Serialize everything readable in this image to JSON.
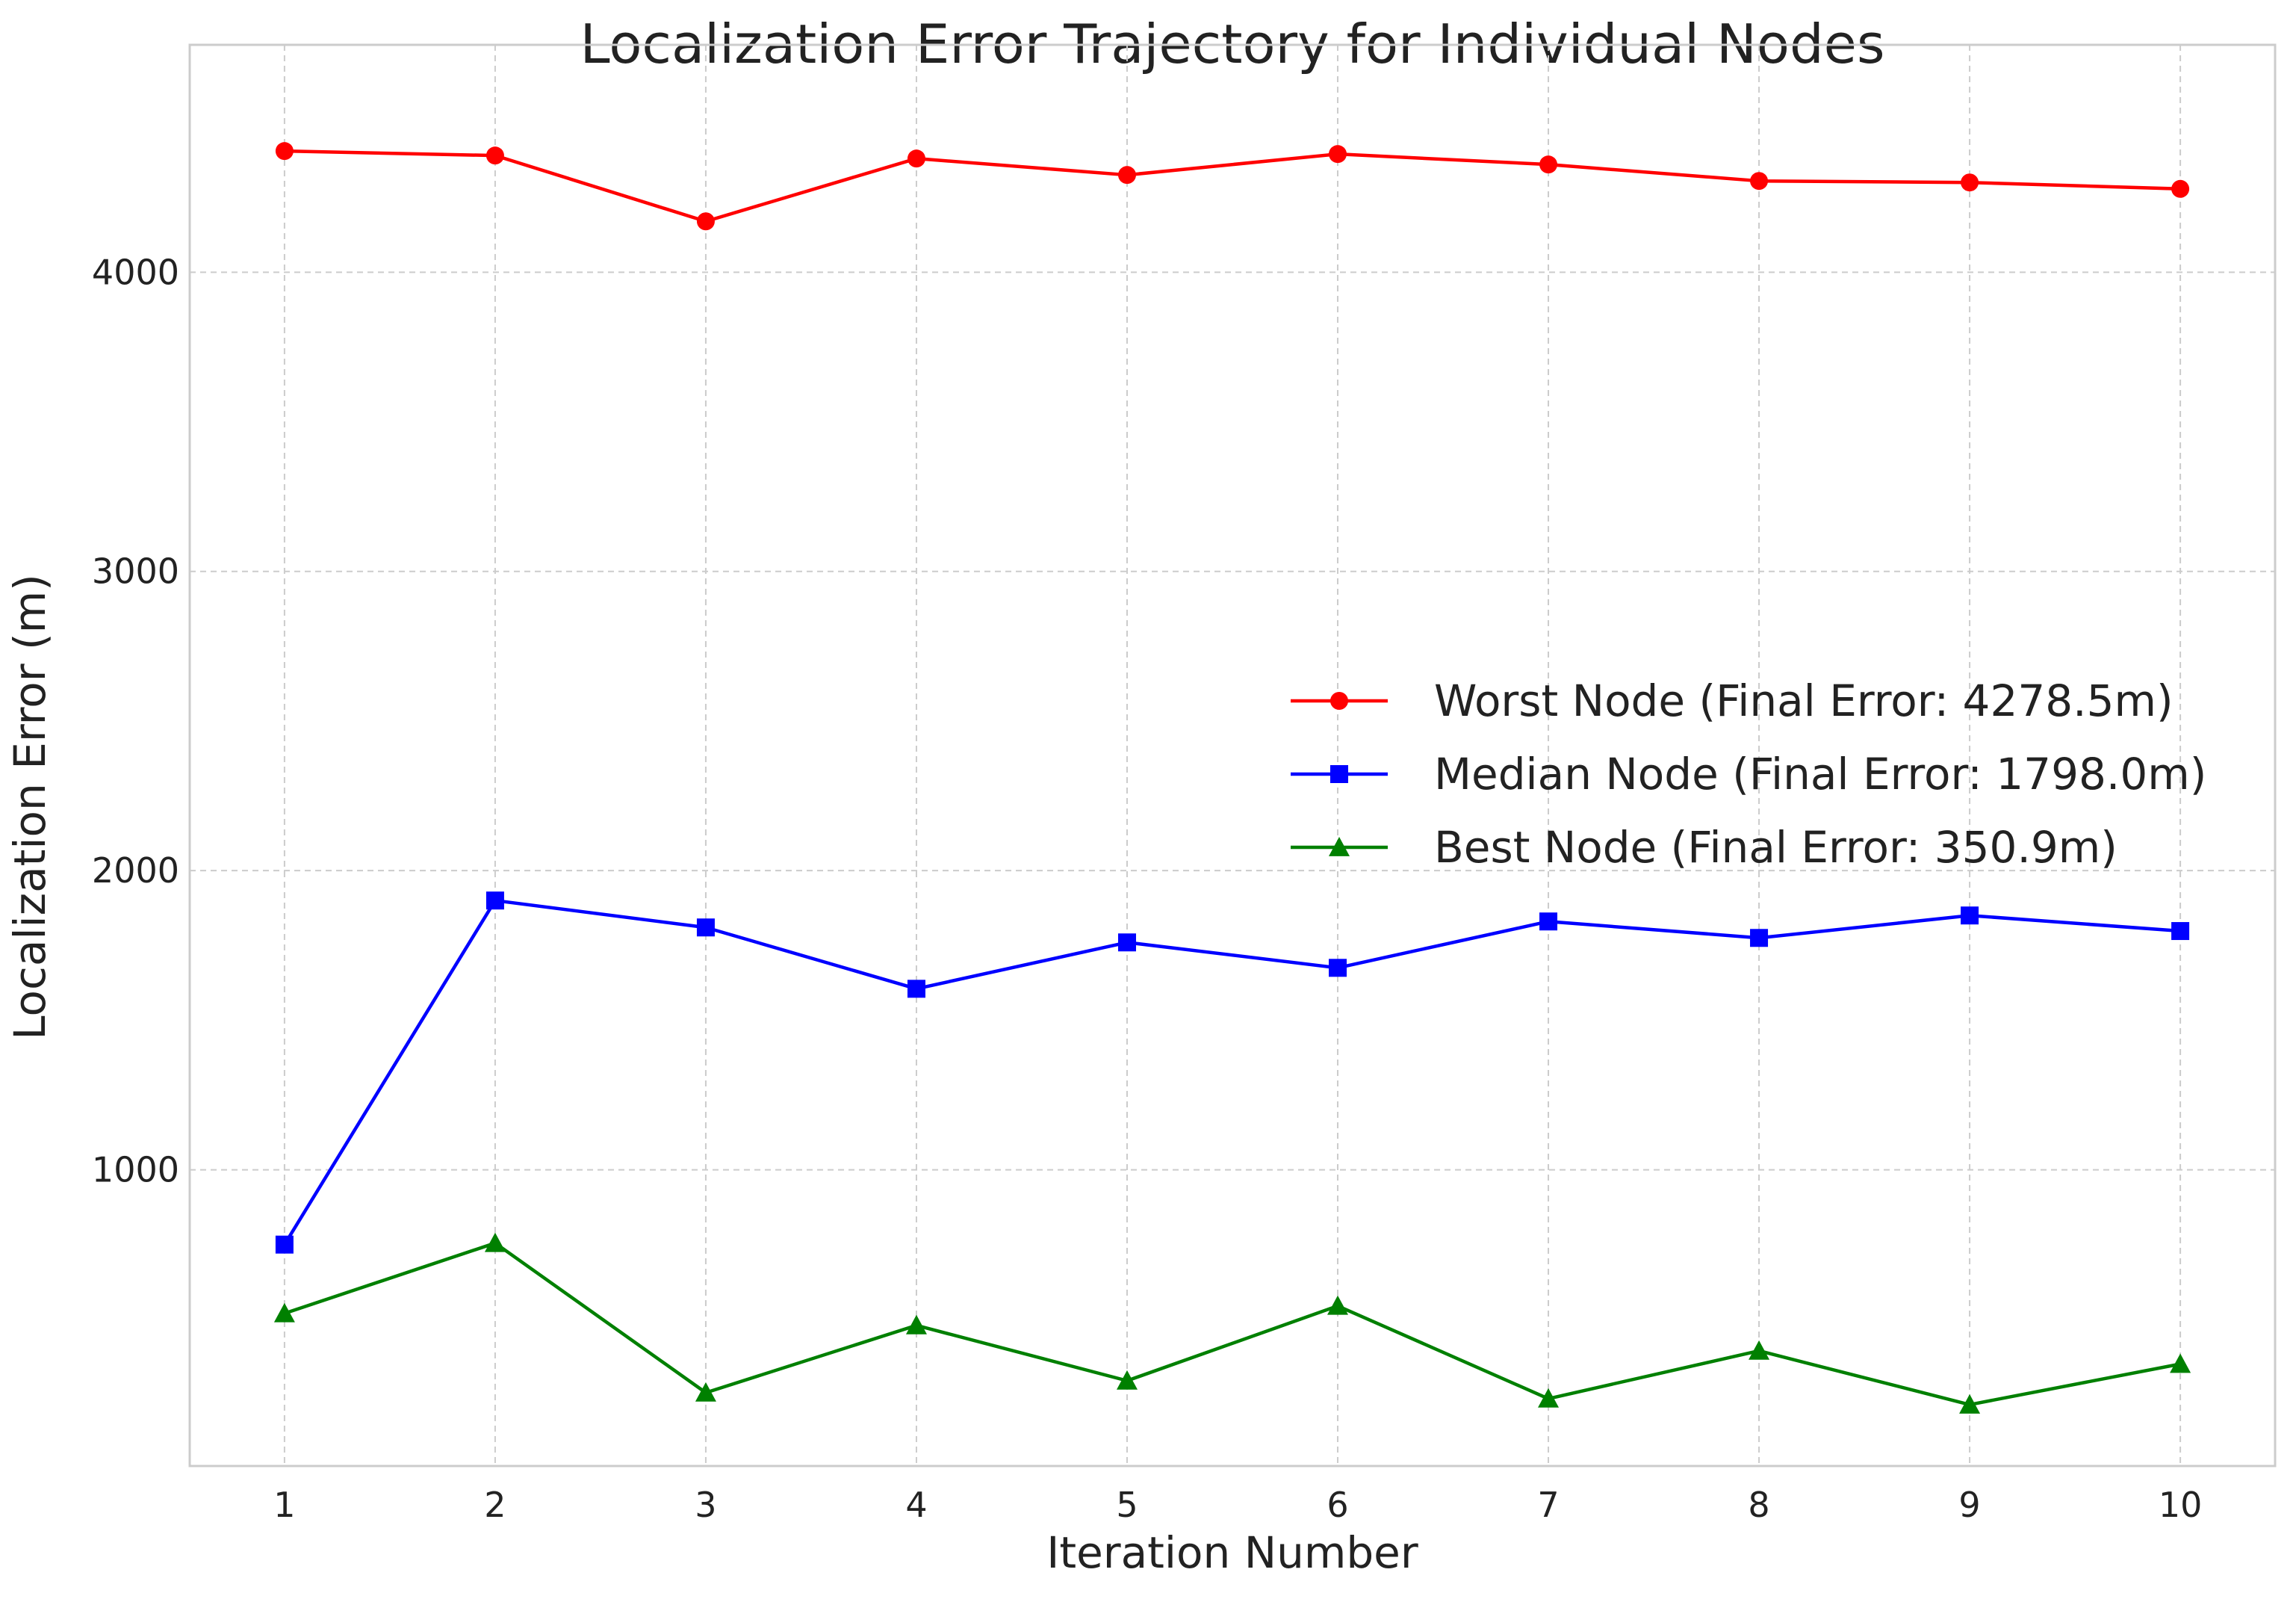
{
  "chart_data": {
    "type": "line",
    "title": "Localization Error Trajectory for Individual Nodes",
    "xlabel": "Iteration Number",
    "ylabel": "Localization Error (m)",
    "x": [
      1,
      2,
      3,
      4,
      5,
      6,
      7,
      8,
      9,
      10
    ],
    "xticks": [
      "1",
      "2",
      "3",
      "4",
      "5",
      "6",
      "7",
      "8",
      "9",
      "10"
    ],
    "yticks": [
      1000,
      2000,
      3000,
      4000
    ],
    "ytick_labels": [
      "1000",
      "2000",
      "3000",
      "4000"
    ],
    "xlim": [
      0.55,
      10.45
    ],
    "ylim": [
      10,
      4760
    ],
    "grid": true,
    "legend_position": "center-right",
    "series": [
      {
        "name": "Worst Node (Final Error: 4278.5m)",
        "color": "#ff0000",
        "marker": "circle",
        "values": [
          4405,
          4390,
          4170,
          4380,
          4325,
          4395,
          4360,
          4305,
          4300,
          4278.5
        ]
      },
      {
        "name": "Median Node (Final Error: 1798.0m)",
        "color": "#0000ff",
        "marker": "square",
        "values": [
          750,
          1900,
          1810,
          1605,
          1760,
          1675,
          1830,
          1775,
          1850,
          1798.0
        ]
      },
      {
        "name": "Best Node (Final Error: 350.9m)",
        "color": "#008000",
        "marker": "triangle",
        "values": [
          520,
          755,
          255,
          480,
          295,
          545,
          235,
          395,
          215,
          350.9
        ]
      }
    ]
  }
}
